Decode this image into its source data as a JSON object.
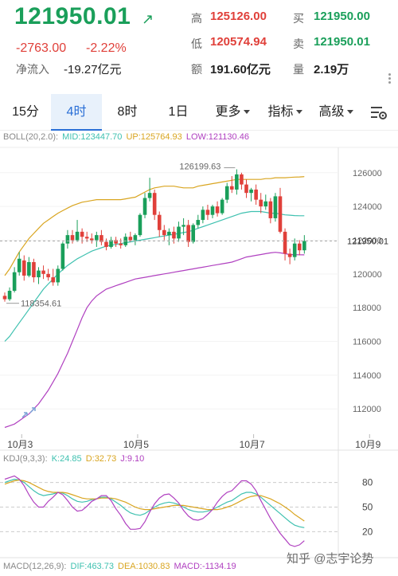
{
  "quote": {
    "price": "121950.01",
    "change": "-2763.00",
    "change_pct": "-2.22%",
    "netflow_label": "净流入",
    "netflow_value": "-19.27亿元",
    "high_label": "高",
    "high": "125126.00",
    "low_label": "低",
    "low": "120574.94",
    "amount_label": "额",
    "amount": "191.60亿元",
    "bid_label": "买",
    "bid": "121950.00",
    "ask_label": "卖",
    "ask": "121950.01",
    "volume_label": "量",
    "volume": "2.19万",
    "colors": {
      "up": "#1a9f5a",
      "down": "#e0403a"
    }
  },
  "tabs": [
    {
      "label": "15分"
    },
    {
      "label": "4时",
      "active": true
    },
    {
      "label": "8时"
    },
    {
      "label": "1日"
    },
    {
      "label": "更多"
    },
    {
      "label": "指标"
    },
    {
      "label": "高级"
    }
  ],
  "boll_legend": {
    "name": "BOLL(20,2.0):",
    "mid": "MID:123447.70",
    "up": "UP:125764.93",
    "low": "LOW:121130.46"
  },
  "kdj_legend": {
    "name": "KDJ(9,3,3):",
    "k": "K:24.85",
    "d": "D:32.73",
    "j": "J:9.10"
  },
  "macd_legend": {
    "name": "MACD(12,26,9):",
    "dif": "DIF:463.73",
    "dea": "DEA:1030.83",
    "macd": "MACD:-1134.19"
  },
  "watermark": "知乎 @志宇论势",
  "chart_data": [
    {
      "type": "candlestick",
      "title": "",
      "ylim": [
        110500,
        127500
      ],
      "y_ticks": [
        "126000",
        "124000",
        "122000",
        "120000",
        "118000",
        "116000",
        "114000",
        "112000"
      ],
      "y_tick_values": [
        126000,
        124000,
        122000,
        120000,
        118000,
        116000,
        114000,
        112000
      ],
      "x_ticks": [
        "10月3",
        "10月5",
        "10月7",
        "10月9"
      ],
      "x_tick_index": [
        3.5,
        27.5,
        51.5,
        75.5
      ],
      "last_price_label": "121950.01",
      "last_price": 121950,
      "max_label": "126199.63",
      "max_index": 48,
      "max_value": 126199,
      "min_label": "118354.61",
      "min_index": 0,
      "min_value": 118354,
      "candles": [
        [
          118700,
          118900,
          118354,
          118500
        ],
        [
          118500,
          119200,
          118400,
          119000
        ],
        [
          119000,
          120400,
          118900,
          120100
        ],
        [
          120100,
          121300,
          119900,
          120900
        ],
        [
          120800,
          121100,
          119600,
          119900
        ],
        [
          119900,
          121000,
          119800,
          120700
        ],
        [
          120700,
          120900,
          119500,
          119800
        ],
        [
          119800,
          120400,
          119400,
          120200
        ],
        [
          120200,
          120500,
          119700,
          120000
        ],
        [
          120000,
          120300,
          119600,
          119800
        ],
        [
          119800,
          120300,
          119300,
          119500
        ],
        [
          119500,
          120500,
          119300,
          120300
        ],
        [
          120300,
          121900,
          120200,
          121800
        ],
        [
          121800,
          122600,
          121500,
          122300
        ],
        [
          122300,
          122600,
          121800,
          122000
        ],
        [
          122000,
          123200,
          121900,
          122500
        ],
        [
          122500,
          122700,
          121800,
          122200
        ],
        [
          122200,
          122500,
          121900,
          122100
        ],
        [
          122100,
          122400,
          121800,
          122000
        ],
        [
          122000,
          122500,
          121600,
          122300
        ],
        [
          122300,
          122600,
          121700,
          121900
        ],
        [
          121900,
          122100,
          121400,
          121600
        ],
        [
          121600,
          122200,
          121500,
          122000
        ],
        [
          122000,
          122200,
          121600,
          121800
        ],
        [
          121800,
          122100,
          121500,
          121700
        ],
        [
          121700,
          122400,
          121600,
          122200
        ],
        [
          122200,
          122500,
          121900,
          122000
        ],
        [
          122000,
          122400,
          121700,
          122300
        ],
        [
          122300,
          123600,
          122200,
          123500
        ],
        [
          123500,
          124800,
          123300,
          124500
        ],
        [
          124500,
          125700,
          124300,
          124800
        ],
        [
          124800,
          125000,
          123200,
          123500
        ],
        [
          123500,
          123700,
          122200,
          122600
        ],
        [
          122600,
          122900,
          122000,
          122300
        ],
        [
          122300,
          122700,
          121700,
          122500
        ],
        [
          122500,
          122800,
          121800,
          122100
        ],
        [
          122100,
          123100,
          121900,
          122800
        ],
        [
          122800,
          123300,
          122300,
          122900
        ],
        [
          122900,
          123200,
          121600,
          121900
        ],
        [
          121900,
          123000,
          121800,
          122900
        ],
        [
          122900,
          123500,
          122700,
          123200
        ],
        [
          123200,
          124000,
          123000,
          123800
        ],
        [
          123800,
          124100,
          123200,
          123500
        ],
        [
          123500,
          124100,
          123300,
          124000
        ],
        [
          124000,
          124300,
          123400,
          123600
        ],
        [
          123600,
          124500,
          123500,
          124400
        ],
        [
          124400,
          125400,
          124200,
          125200
        ],
        [
          125200,
          125800,
          124800,
          125000
        ],
        [
          125000,
          126199,
          124700,
          125900
        ],
        [
          125900,
          126000,
          125000,
          125300
        ],
        [
          125300,
          125600,
          124500,
          124800
        ],
        [
          124800,
          125100,
          124300,
          125000
        ],
        [
          125000,
          125300,
          124100,
          124400
        ],
        [
          124400,
          124800,
          123600,
          124000
        ],
        [
          124000,
          124700,
          123800,
          124300
        ],
        [
          124300,
          124500,
          123000,
          123300
        ],
        [
          123300,
          124800,
          123100,
          124600
        ],
        [
          124600,
          125100,
          122400,
          122500
        ],
        [
          122500,
          122700,
          120800,
          121200
        ],
        [
          121200,
          121500,
          120574,
          121000
        ],
        [
          121000,
          122100,
          120800,
          121800
        ],
        [
          121800,
          122000,
          121100,
          121400
        ],
        [
          121400,
          122300,
          121200,
          121950
        ]
      ],
      "series": [
        {
          "name": "UP",
          "color": "#d9a520",
          "values": [
            119900,
            120300,
            120800,
            121300,
            121700,
            122100,
            122400,
            122700,
            123000,
            123200,
            123400,
            123600,
            123750,
            123900,
            124050,
            124150,
            124250,
            124300,
            124350,
            124400,
            124400,
            124400,
            124400,
            124400,
            124400,
            124450,
            124500,
            124550,
            124700,
            124850,
            125000,
            125100,
            125150,
            125200,
            125200,
            125200,
            125150,
            125100,
            125100,
            125100,
            125200,
            125250,
            125300,
            125350,
            125400,
            125450,
            125500,
            125550,
            125600,
            125600,
            125600,
            125600,
            125600,
            125600,
            125650,
            125650,
            125700,
            125700,
            125700,
            125720,
            125740,
            125750,
            125765
          ]
        },
        {
          "name": "MID",
          "color": "#3fc1b0",
          "values": [
            116000,
            116300,
            116700,
            117100,
            117500,
            117900,
            118300,
            118700,
            119100,
            119400,
            119700,
            120000,
            120250,
            120500,
            120700,
            120900,
            121050,
            121200,
            121350,
            121450,
            121550,
            121650,
            121700,
            121750,
            121800,
            121850,
            121900,
            121950,
            122000,
            122050,
            122100,
            122150,
            122200,
            122250,
            122300,
            122350,
            122400,
            122450,
            122500,
            122600,
            122700,
            122800,
            122900,
            123000,
            123100,
            123200,
            123300,
            123400,
            123500,
            123600,
            123650,
            123700,
            123700,
            123700,
            123650,
            123600,
            123600,
            123550,
            123500,
            123480,
            123460,
            123450,
            123448
          ]
        },
        {
          "name": "LOW",
          "color": "#b040c0",
          "values": [
            110900,
            111000,
            111100,
            111300,
            111500,
            111700,
            112000,
            112300,
            112700,
            113100,
            113600,
            114100,
            114700,
            115300,
            116000,
            116700,
            117400,
            118000,
            118400,
            118700,
            118900,
            119100,
            119200,
            119300,
            119400,
            119500,
            119600,
            119700,
            119750,
            119800,
            119850,
            119900,
            119950,
            120000,
            120050,
            120100,
            120150,
            120200,
            120250,
            120300,
            120350,
            120400,
            120450,
            120500,
            120550,
            120600,
            120650,
            120700,
            120800,
            120900,
            121000,
            121050,
            121100,
            121150,
            121200,
            121250,
            121280,
            121250,
            121200,
            121150,
            121140,
            121135,
            121130
          ]
        }
      ]
    },
    {
      "type": "line",
      "title": "",
      "ylim": [
        0,
        100
      ],
      "y_ticks": [
        "80",
        "50",
        "20"
      ],
      "y_tick_values": [
        80,
        50,
        20
      ],
      "series": [
        {
          "name": "K",
          "color": "#3fc1b0",
          "values": [
            80,
            82,
            84,
            83,
            80,
            75,
            70,
            66,
            64,
            65,
            66,
            68,
            67,
            64,
            60,
            57,
            56,
            57,
            59,
            60,
            62,
            62,
            60,
            56,
            52,
            47,
            43,
            41,
            40,
            42,
            46,
            50,
            53,
            55,
            56,
            55,
            53,
            50,
            47,
            45,
            44,
            44,
            45,
            47,
            50,
            53,
            56,
            58,
            62,
            66,
            68,
            68,
            66,
            62,
            57,
            52,
            47,
            42,
            37,
            32,
            28,
            26,
            25
          ]
        },
        {
          "name": "D",
          "color": "#d9a520",
          "values": [
            78,
            80,
            82,
            83,
            82,
            80,
            77,
            74,
            71,
            69,
            68,
            68,
            68,
            67,
            65,
            63,
            61,
            60,
            60,
            60,
            61,
            61,
            61,
            60,
            58,
            56,
            53,
            50,
            48,
            47,
            47,
            48,
            49,
            50,
            51,
            52,
            52,
            52,
            51,
            50,
            49,
            48,
            47,
            47,
            47,
            48,
            50,
            52,
            55,
            58,
            61,
            63,
            64,
            64,
            62,
            60,
            57,
            54,
            50,
            46,
            41,
            37,
            33
          ]
        },
        {
          "name": "J",
          "color": "#b040c0",
          "values": [
            84,
            86,
            88,
            84,
            76,
            65,
            56,
            50,
            50,
            57,
            62,
            68,
            65,
            58,
            50,
            45,
            46,
            51,
            57,
            60,
            64,
            64,
            58,
            48,
            40,
            30,
            23,
            23,
            24,
            32,
            44,
            54,
            61,
            65,
            66,
            61,
            55,
            46,
            39,
            35,
            34,
            36,
            41,
            47,
            56,
            63,
            68,
            70,
            76,
            82,
            82,
            78,
            70,
            58,
            47,
            36,
            27,
            18,
            11,
            4,
            2,
            4,
            9
          ]
        }
      ]
    }
  ]
}
